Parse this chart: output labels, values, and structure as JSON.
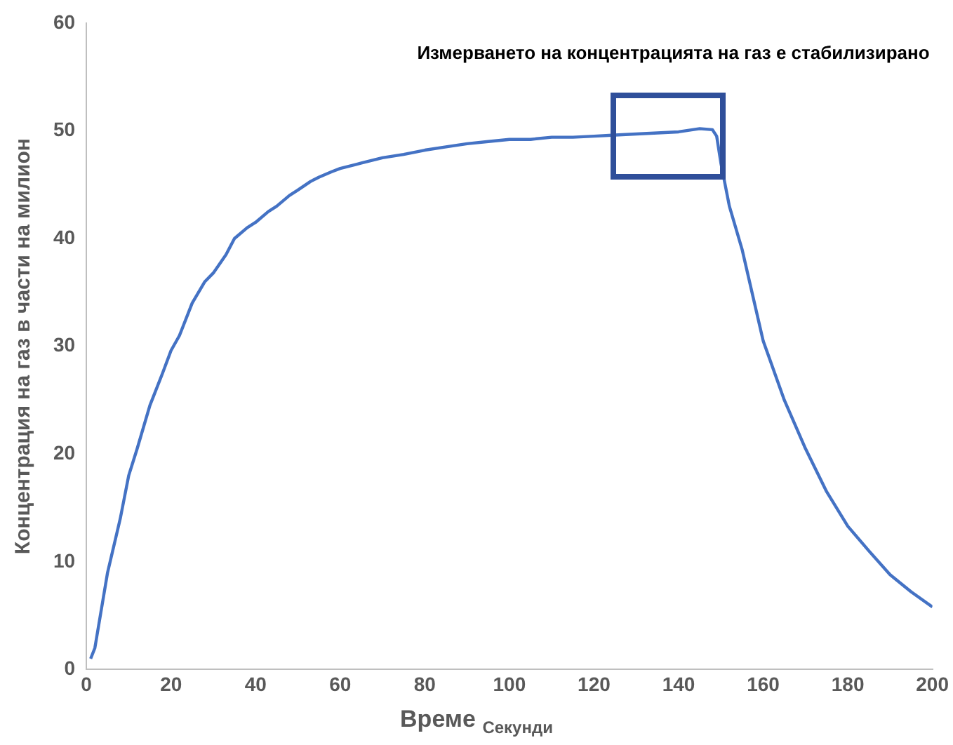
{
  "chart_data": {
    "type": "line",
    "xlabel": "Време $_{Секунди}$",
    "ylabel": "Концентрация на газ в части на милион",
    "annotations": [
      "Измерването на концентрацията на газ е стабилизирано"
    ],
    "x": [
      1,
      2,
      5,
      8,
      10,
      12,
      15,
      18,
      20,
      22,
      25,
      28,
      30,
      33,
      35,
      38,
      40,
      43,
      45,
      48,
      50,
      53,
      55,
      58,
      60,
      65,
      70,
      75,
      80,
      85,
      90,
      95,
      100,
      105,
      110,
      115,
      120,
      125,
      130,
      135,
      140,
      145,
      148,
      149,
      150,
      152,
      155,
      160,
      165,
      170,
      175,
      180,
      185,
      190,
      195,
      200
    ],
    "series": [
      {
        "color": "#4472c4",
        "values": [
          1,
          2,
          9,
          14,
          18,
          20.5,
          24.5,
          27.5,
          29.6,
          31,
          34,
          36,
          36.8,
          38.5,
          40,
          41,
          41.5,
          42.5,
          43,
          44,
          44.5,
          45.3,
          45.7,
          46.2,
          46.5,
          47,
          47.5,
          47.8,
          48.2,
          48.5,
          48.8,
          49,
          49.2,
          49.2,
          49.4,
          49.4,
          49.5,
          49.6,
          49.7,
          49.8,
          49.9,
          50.2,
          50.1,
          49.5,
          47,
          43,
          39,
          30.5,
          25,
          20.5,
          16.5,
          13.3,
          11,
          8.8,
          7.2,
          5.8
        ]
      }
    ],
    "xlim": [
      0,
      200
    ],
    "xticks": [
      0,
      20,
      40,
      60,
      80,
      100,
      120,
      140,
      160,
      180,
      200
    ],
    "ylim": [
      0,
      60
    ],
    "yticks": [
      0,
      10,
      20,
      30,
      40,
      50,
      60
    ],
    "grid": false,
    "legend": false,
    "marker": "none",
    "line_style": "solid"
  }
}
